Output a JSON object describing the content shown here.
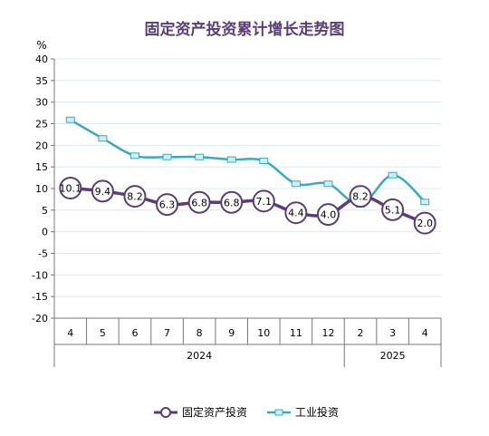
{
  "chart_data": {
    "type": "line",
    "title": "固定资产投资累计增长走势图",
    "y_unit": "%",
    "ylim": [
      -20,
      40
    ],
    "y_ticks": [
      40,
      35,
      30,
      25,
      20,
      15,
      10,
      5,
      0,
      -5,
      -10,
      -15,
      -20
    ],
    "categories": [
      "4",
      "5",
      "6",
      "7",
      "8",
      "9",
      "10",
      "11",
      "12",
      "2",
      "3",
      "4"
    ],
    "year_groups": [
      {
        "label": "2024",
        "span": 9
      },
      {
        "label": "2025",
        "span": 3
      }
    ],
    "grid": true,
    "legend_position": "bottom",
    "series": [
      {
        "name": "固定资产投资",
        "color": "#5b3d7a",
        "marker": "circle-labeled",
        "values": [
          10.1,
          9.4,
          8.2,
          6.3,
          6.8,
          6.8,
          7.1,
          4.4,
          4.0,
          8.2,
          5.1,
          2.0
        ]
      },
      {
        "name": "工业投资",
        "color": "#3aa9bf",
        "marker": "square",
        "values": [
          25.9,
          21.6,
          17.6,
          17.3,
          17.3,
          16.7,
          16.4,
          11.1,
          11.1,
          6.3,
          13.1,
          6.9
        ]
      }
    ]
  }
}
